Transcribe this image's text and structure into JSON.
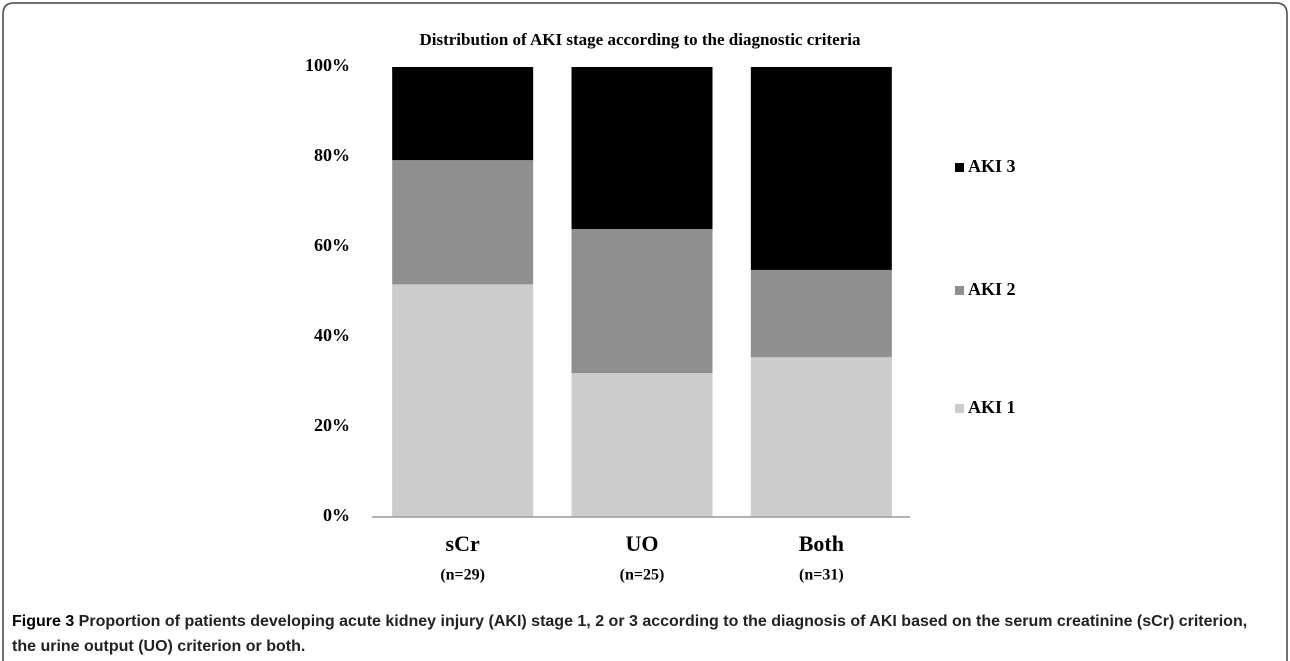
{
  "chart_data": {
    "type": "stacked_bar",
    "title": "Distribution of AKI stage according to the diagnostic criteria",
    "categories": [
      "sCr",
      "UO",
      "Both"
    ],
    "category_notes": [
      "(n=29)",
      "(n=25)",
      "(n=31)"
    ],
    "series": [
      {
        "name": "AKI 1",
        "color": "#cccccc",
        "values": [
          51.7,
          32,
          35.5
        ]
      },
      {
        "name": "AKI 2",
        "color": "#8f8f8f",
        "values": [
          27.6,
          32,
          19.4
        ]
      },
      {
        "name": "AKI 3",
        "color": "#000000",
        "values": [
          20.7,
          36,
          45.1
        ]
      }
    ],
    "ylim": [
      0,
      100
    ],
    "yticks": [
      {
        "value": 0,
        "label": "0%"
      },
      {
        "value": 20,
        "label": "20%"
      },
      {
        "value": 40,
        "label": "40%"
      },
      {
        "value": 60,
        "label": "60%"
      },
      {
        "value": 80,
        "label": "80%"
      },
      {
        "value": 100,
        "label": "100%"
      }
    ],
    "grid": false,
    "legend": "right"
  },
  "caption": {
    "label": "Figure 3",
    "text": " Proportion of patients developing acute kidney injury (AKI) stage 1, 2 or 3 according to the diagnosis of AKI based on the serum creatinine (sCr) criterion, the urine output (UO) criterion or both."
  }
}
